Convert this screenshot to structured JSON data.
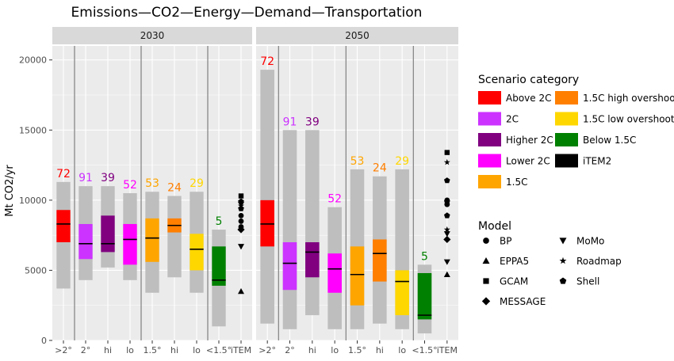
{
  "chart_data": {
    "type": "bar",
    "title": "Emissions—CO2—Energy—Demand—Transportation",
    "ylabel": "Mt CO2/yr",
    "ylim": [
      0,
      21000
    ],
    "yticks": [
      0,
      5000,
      10000,
      15000,
      20000
    ],
    "categories": [
      ">2°",
      "2°",
      "hi",
      "lo",
      "1.5°",
      "hi",
      "lo",
      "<1.5°",
      "iTEM"
    ],
    "category_scenario": [
      "Above 2C",
      "2C",
      "Higher 2C",
      "Lower 2C",
      "1.5C",
      "1.5C high overshoot",
      "1.5C low overshoot",
      "Below 1.5C",
      "iTEM2"
    ],
    "panels": [
      {
        "name": "2030",
        "ranges": [
          {
            "min": 3700,
            "p25": 7000,
            "median": 8300,
            "p75": 9300,
            "max": 11300,
            "count": "72"
          },
          {
            "min": 4300,
            "p25": 5800,
            "median": 6900,
            "p75": 8300,
            "max": 11000,
            "count": "91"
          },
          {
            "min": 5200,
            "p25": 6300,
            "median": 6900,
            "p75": 8900,
            "max": 11000,
            "count": "39"
          },
          {
            "min": 4300,
            "p25": 5400,
            "median": 7200,
            "p75": 8300,
            "max": 10500,
            "count": "52"
          },
          {
            "min": 3400,
            "p25": 5600,
            "median": 7300,
            "p75": 8700,
            "max": 10600,
            "count": "53"
          },
          {
            "min": 4500,
            "p25": 7700,
            "median": 8200,
            "p75": 8700,
            "max": 10300,
            "count": "24"
          },
          {
            "min": 3400,
            "p25": 5000,
            "median": 6500,
            "p75": 7600,
            "max": 10600,
            "count": "29"
          },
          {
            "min": 1000,
            "p25": 3900,
            "median": 4300,
            "p75": 6700,
            "max": 7900,
            "count": "5"
          }
        ],
        "models": [
          {
            "model": "BP",
            "value": 8900
          },
          {
            "model": "BP",
            "value": 8500
          },
          {
            "model": "BP",
            "value": 8100
          },
          {
            "model": "EPPA5",
            "value": 3500
          },
          {
            "model": "GCAM",
            "value": 10300
          },
          {
            "model": "MESSAGE",
            "value": 7900
          },
          {
            "model": "MoMo",
            "value": 6700
          },
          {
            "model": "MoMo",
            "value": 9700
          },
          {
            "model": "Roadmap",
            "value": 9600
          },
          {
            "model": "Shell",
            "value": 9900
          },
          {
            "model": "Shell",
            "value": 9400
          }
        ]
      },
      {
        "name": "2050",
        "ranges": [
          {
            "min": 1200,
            "p25": 6700,
            "median": 8300,
            "p75": 10000,
            "max": 19300,
            "count": "72"
          },
          {
            "min": 800,
            "p25": 3600,
            "median": 5500,
            "p75": 7000,
            "max": 15000,
            "count": "91"
          },
          {
            "min": 1800,
            "p25": 4500,
            "median": 6300,
            "p75": 7000,
            "max": 15000,
            "count": "39"
          },
          {
            "min": 800,
            "p25": 3400,
            "median": 5100,
            "p75": 6200,
            "max": 9500,
            "count": "52"
          },
          {
            "min": 800,
            "p25": 2500,
            "median": 4700,
            "p75": 6700,
            "max": 12200,
            "count": "53"
          },
          {
            "min": 1200,
            "p25": 4200,
            "median": 6200,
            "p75": 7200,
            "max": 11700,
            "count": "24"
          },
          {
            "min": 800,
            "p25": 1800,
            "median": 4200,
            "p75": 5000,
            "max": 12200,
            "count": "29"
          },
          {
            "min": 500,
            "p25": 1500,
            "median": 1800,
            "p75": 4800,
            "max": 5400,
            "count": "5"
          }
        ],
        "models": [
          {
            "model": "BP",
            "value": 10000
          },
          {
            "model": "BP",
            "value": 9700
          },
          {
            "model": "EPPA5",
            "value": 4700
          },
          {
            "model": "GCAM",
            "value": 13400
          },
          {
            "model": "MESSAGE",
            "value": 7200
          },
          {
            "model": "MoMo",
            "value": 5600
          },
          {
            "model": "MoMo",
            "value": 7600
          },
          {
            "model": "Roadmap",
            "value": 12700
          },
          {
            "model": "Roadmap",
            "value": 7900
          },
          {
            "model": "Shell",
            "value": 11400
          },
          {
            "model": "Shell",
            "value": 9900
          },
          {
            "model": "Shell",
            "value": 8900
          }
        ]
      }
    ],
    "legend": {
      "placement": "right",
      "scenario_title": "Scenario category",
      "scenarios": [
        {
          "label": "Above 2C",
          "color": "#ff0000"
        },
        {
          "label": "1.5C high overshoot",
          "color": "#ff7f00"
        },
        {
          "label": "2C",
          "color": "#cc33ff"
        },
        {
          "label": "1.5C low overshoot",
          "color": "#ffd700"
        },
        {
          "label": "Higher 2C",
          "color": "#800080"
        },
        {
          "label": "Below 1.5C",
          "color": "#008000"
        },
        {
          "label": "Lower 2C",
          "color": "#ff00ff"
        },
        {
          "label": "iTEM2",
          "color": "#000000"
        },
        {
          "label": "1.5C",
          "color": "#ffa500"
        }
      ],
      "model_title": "Model",
      "models": [
        {
          "label": "BP",
          "shape": "circle"
        },
        {
          "label": "MoMo",
          "shape": "triangle-down"
        },
        {
          "label": "EPPA5",
          "shape": "triangle-up"
        },
        {
          "label": "Roadmap",
          "shape": "star"
        },
        {
          "label": "GCAM",
          "shape": "square"
        },
        {
          "label": "Shell",
          "shape": "pentagon"
        },
        {
          "label": "MESSAGE",
          "shape": "diamond"
        }
      ]
    },
    "colors": {
      "grey_bar": "#bebebe",
      "panel_bg": "#ebebeb",
      "strip_bg": "#d9d9d9",
      "count_colors": [
        "#ff0000",
        "#cc33ff",
        "#800080",
        "#ff00ff",
        "#ffa500",
        "#ff7f00",
        "#ffd700",
        "#008000"
      ]
    },
    "grid": true
  }
}
